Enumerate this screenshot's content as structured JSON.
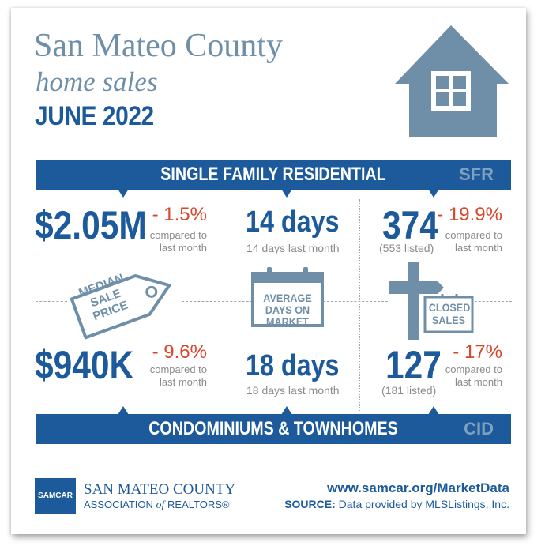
{
  "header": {
    "line1": "San Mateo County",
    "line2": "home sales",
    "line3": "JUNE 2022"
  },
  "sfr": {
    "label": "SINGLE FAMILY RESIDENTIAL",
    "code": "SFR"
  },
  "cid": {
    "label": "CONDOMINIUMS & TOWNHOMES",
    "code": "CID"
  },
  "median": {
    "sign": "MEDIAN SALE PRICE",
    "sfr": {
      "value": "$2.05M",
      "change": "- 1.5%",
      "compare1": "compared to",
      "compare2": "last month"
    },
    "cid": {
      "value": "$940K",
      "change": "- 9.6%",
      "compare1": "compared to",
      "compare2": "last month"
    }
  },
  "days": {
    "sign": "AVERAGE DAYS ON MARKET",
    "sfr": {
      "value": "14 days",
      "last": "14 days last month"
    },
    "cid": {
      "value": "18 days",
      "last": "18 days last month"
    }
  },
  "closed": {
    "sign": "CLOSED SALES",
    "sfr": {
      "value": "374",
      "listed": "(553 listed)",
      "change": "- 19.9%",
      "compare1": "compared to",
      "compare2": "last month"
    },
    "cid": {
      "value": "127",
      "listed": "(181 listed)",
      "change": "- 17%",
      "compare1": "compared to",
      "compare2": "last month"
    }
  },
  "footer": {
    "logo_text": "SAMCAR",
    "org_line1": "SAN MATEO COUNTY",
    "org_line2_a": "ASSOCIATION",
    "org_line2_of": "of",
    "org_line2_b": "REALTORS®",
    "url": "www.samcar.org/MarketData",
    "source_label": "SOURCE:",
    "source_text": " Data provided by MLSListings, Inc."
  },
  "colors": {
    "navy": "#1d5a9b",
    "steel": "#6f8fa9",
    "red": "#d9452b",
    "gray": "#8a8a8a"
  },
  "icons": [
    "house-icon",
    "price-tag-icon",
    "calendar-icon",
    "signpost-icon"
  ]
}
